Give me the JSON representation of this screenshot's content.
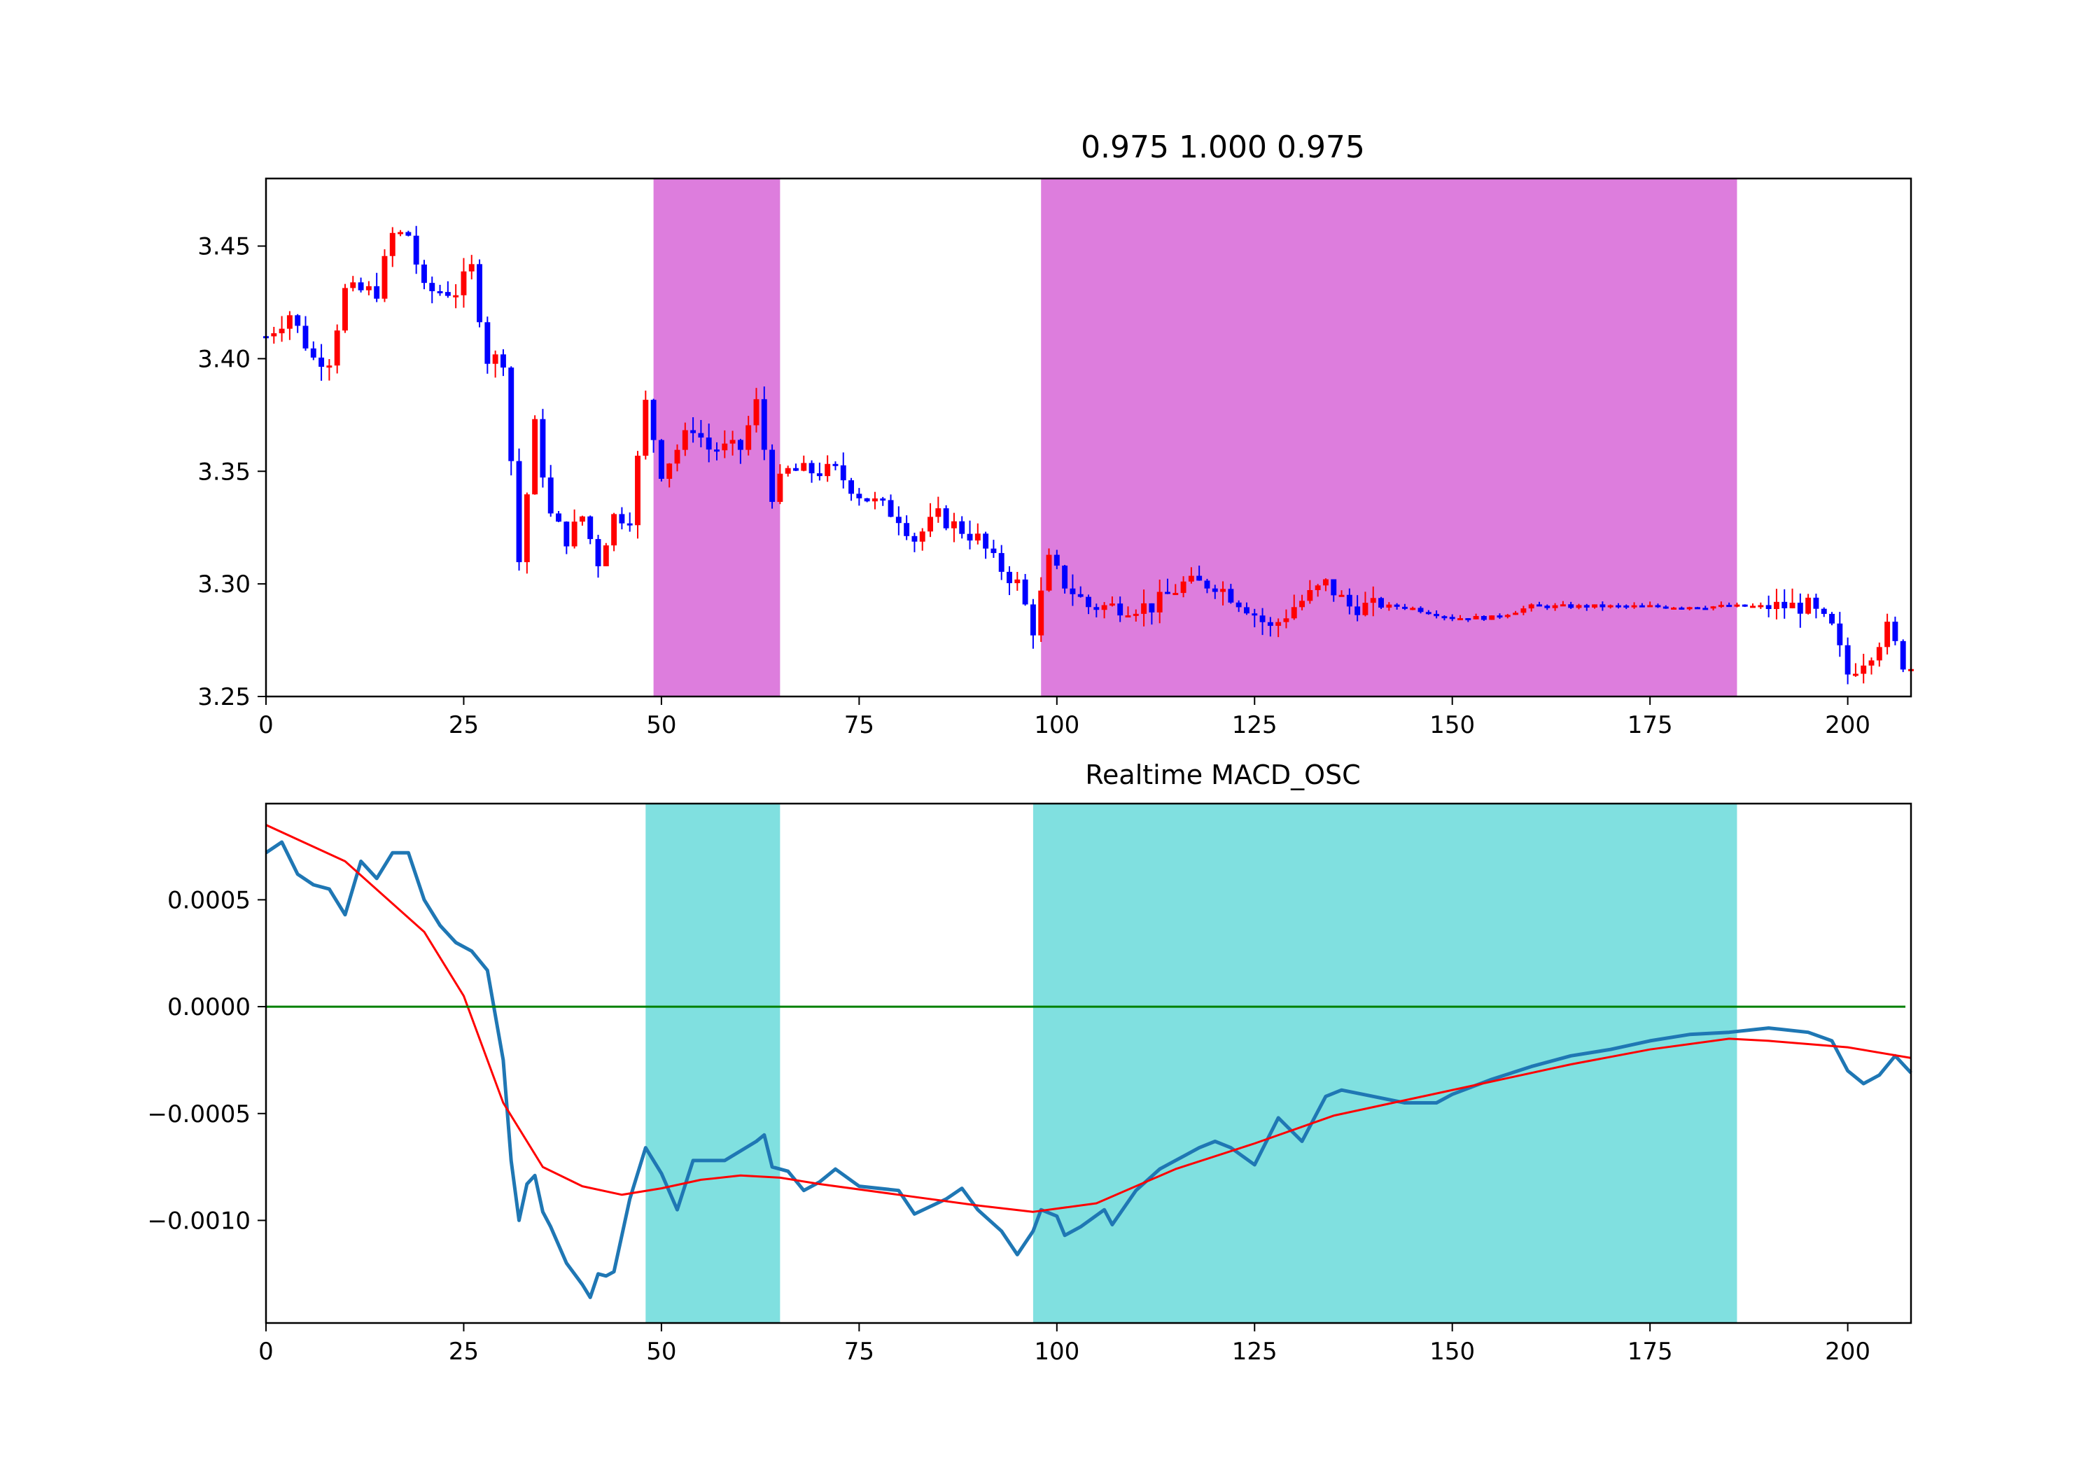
{
  "chart_data": [
    {
      "type": "candlestick",
      "title": "0.975 1.000 0.975",
      "xlabel": "",
      "ylabel": "",
      "xlim": [
        0,
        208
      ],
      "ylim": [
        3.25,
        3.48
      ],
      "x_ticks": [
        0,
        25,
        50,
        75,
        100,
        125,
        150,
        175,
        200
      ],
      "y_ticks": [
        3.25,
        3.3,
        3.35,
        3.4,
        3.45
      ],
      "y_tick_labels": [
        "3.25",
        "3.30",
        "3.35",
        "3.40",
        "3.45"
      ],
      "grid": false,
      "up_color": "#ff0000",
      "down_color": "#0000ff",
      "highlight_color": "#dd7ddd",
      "highlight_ranges": [
        [
          49,
          65
        ],
        [
          98,
          186
        ]
      ],
      "close_anchors": [
        [
          0,
          3.41
        ],
        [
          3,
          3.42
        ],
        [
          6,
          3.4
        ],
        [
          8,
          3.4
        ],
        [
          10,
          3.43
        ],
        [
          12,
          3.43
        ],
        [
          14,
          3.43
        ],
        [
          16,
          3.455
        ],
        [
          18,
          3.455
        ],
        [
          20,
          3.43
        ],
        [
          22,
          3.43
        ],
        [
          24,
          3.43
        ],
        [
          26,
          3.44
        ],
        [
          28,
          3.4
        ],
        [
          30,
          3.4
        ],
        [
          32,
          3.31
        ],
        [
          34,
          3.37
        ],
        [
          36,
          3.33
        ],
        [
          38,
          3.32
        ],
        [
          40,
          3.33
        ],
        [
          42,
          3.31
        ],
        [
          44,
          3.33
        ],
        [
          46,
          3.33
        ],
        [
          48,
          3.38
        ],
        [
          50,
          3.35
        ],
        [
          52,
          3.36
        ],
        [
          54,
          3.37
        ],
        [
          56,
          3.36
        ],
        [
          58,
          3.36
        ],
        [
          60,
          3.36
        ],
        [
          62,
          3.38
        ],
        [
          64,
          3.34
        ],
        [
          66,
          3.35
        ],
        [
          70,
          3.35
        ],
        [
          72,
          3.35
        ],
        [
          75,
          3.34
        ],
        [
          80,
          3.33
        ],
        [
          82,
          3.32
        ],
        [
          85,
          3.33
        ],
        [
          90,
          3.32
        ],
        [
          92,
          3.31
        ],
        [
          95,
          3.3
        ],
        [
          97,
          3.28
        ],
        [
          99,
          3.31
        ],
        [
          101,
          3.3
        ],
        [
          104,
          3.29
        ],
        [
          108,
          3.29
        ],
        [
          112,
          3.29
        ],
        [
          116,
          3.3
        ],
        [
          120,
          3.3
        ],
        [
          124,
          3.29
        ],
        [
          127,
          3.28
        ],
        [
          130,
          3.29
        ],
        [
          134,
          3.3
        ],
        [
          137,
          3.29
        ],
        [
          140,
          3.29
        ],
        [
          144,
          3.29
        ],
        [
          150,
          3.285
        ],
        [
          155,
          3.285
        ],
        [
          160,
          3.29
        ],
        [
          170,
          3.29
        ],
        [
          175,
          3.29
        ],
        [
          185,
          3.29
        ],
        [
          190,
          3.29
        ],
        [
          195,
          3.29
        ],
        [
          198,
          3.28
        ],
        [
          200,
          3.26
        ],
        [
          203,
          3.27
        ],
        [
          205,
          3.28
        ],
        [
          207,
          3.265
        ],
        [
          208,
          3.263
        ]
      ]
    },
    {
      "type": "line",
      "title": "Realtime MACD_OSC",
      "xlabel": "",
      "ylabel": "",
      "xlim": [
        0,
        208
      ],
      "ylim": [
        -0.00148,
        0.00095
      ],
      "x_ticks": [
        0,
        25,
        50,
        75,
        100,
        125,
        150,
        175,
        200
      ],
      "y_ticks": [
        0.0005,
        0.0,
        -0.0005,
        -0.001
      ],
      "y_tick_labels": [
        "0.0005",
        "0.0000",
        "−0.0005",
        "−0.0010"
      ],
      "grid": false,
      "highlight_color": "#80e0e0",
      "highlight_ranges": [
        [
          48,
          65
        ],
        [
          97,
          186
        ]
      ],
      "zero_line_color": "#008000",
      "series": [
        {
          "color": "#1f77b4",
          "points": [
            [
              0,
              0.00072
            ],
            [
              2,
              0.00077
            ],
            [
              4,
              0.00062
            ],
            [
              6,
              0.00057
            ],
            [
              8,
              0.00055
            ],
            [
              10,
              0.00043
            ],
            [
              12,
              0.00068
            ],
            [
              14,
              0.0006
            ],
            [
              16,
              0.00072
            ],
            [
              18,
              0.00072
            ],
            [
              20,
              0.0005
            ],
            [
              22,
              0.00038
            ],
            [
              24,
              0.0003
            ],
            [
              26,
              0.00026
            ],
            [
              28,
              0.00017
            ],
            [
              30,
              -0.00025
            ],
            [
              31,
              -0.00072
            ],
            [
              32,
              -0.001
            ],
            [
              33,
              -0.00083
            ],
            [
              34,
              -0.00079
            ],
            [
              35,
              -0.00096
            ],
            [
              36,
              -0.00103
            ],
            [
              38,
              -0.0012
            ],
            [
              40,
              -0.0013
            ],
            [
              41,
              -0.00136
            ],
            [
              42,
              -0.00125
            ],
            [
              43,
              -0.00126
            ],
            [
              44,
              -0.00124
            ],
            [
              46,
              -0.0009
            ],
            [
              48,
              -0.00066
            ],
            [
              50,
              -0.00078
            ],
            [
              52,
              -0.00095
            ],
            [
              54,
              -0.00072
            ],
            [
              58,
              -0.00072
            ],
            [
              62,
              -0.00063
            ],
            [
              63,
              -0.0006
            ],
            [
              64,
              -0.00075
            ],
            [
              66,
              -0.00077
            ],
            [
              68,
              -0.00086
            ],
            [
              70,
              -0.00082
            ],
            [
              72,
              -0.00076
            ],
            [
              75,
              -0.00084
            ],
            [
              80,
              -0.00086
            ],
            [
              82,
              -0.00097
            ],
            [
              86,
              -0.0009
            ],
            [
              88,
              -0.00085
            ],
            [
              90,
              -0.00095
            ],
            [
              93,
              -0.00105
            ],
            [
              95,
              -0.00116
            ],
            [
              97,
              -0.00105
            ],
            [
              98,
              -0.00095
            ],
            [
              100,
              -0.00098
            ],
            [
              101,
              -0.00107
            ],
            [
              103,
              -0.00103
            ],
            [
              106,
              -0.00095
            ],
            [
              107,
              -0.00102
            ],
            [
              110,
              -0.00086
            ],
            [
              113,
              -0.00076
            ],
            [
              116,
              -0.0007
            ],
            [
              118,
              -0.00066
            ],
            [
              120,
              -0.00063
            ],
            [
              122,
              -0.00066
            ],
            [
              125,
              -0.00074
            ],
            [
              128,
              -0.00052
            ],
            [
              131,
              -0.00063
            ],
            [
              134,
              -0.00042
            ],
            [
              136,
              -0.00039
            ],
            [
              140,
              -0.00042
            ],
            [
              144,
              -0.00045
            ],
            [
              148,
              -0.00045
            ],
            [
              150,
              -0.00041
            ],
            [
              155,
              -0.00034
            ],
            [
              160,
              -0.00028
            ],
            [
              165,
              -0.00023
            ],
            [
              170,
              -0.0002
            ],
            [
              175,
              -0.00016
            ],
            [
              180,
              -0.00013
            ],
            [
              185,
              -0.00012
            ],
            [
              190,
              -0.0001
            ],
            [
              195,
              -0.00012
            ],
            [
              198,
              -0.00016
            ],
            [
              200,
              -0.0003
            ],
            [
              202,
              -0.00036
            ],
            [
              204,
              -0.00032
            ],
            [
              206,
              -0.00023
            ],
            [
              208,
              -0.00031
            ]
          ]
        },
        {
          "color": "#ff0000",
          "points": [
            [
              0,
              0.00085
            ],
            [
              10,
              0.00068
            ],
            [
              20,
              0.00035
            ],
            [
              25,
              5e-05
            ],
            [
              30,
              -0.00045
            ],
            [
              35,
              -0.00075
            ],
            [
              40,
              -0.00084
            ],
            [
              45,
              -0.00088
            ],
            [
              50,
              -0.00085
            ],
            [
              55,
              -0.00081
            ],
            [
              60,
              -0.00079
            ],
            [
              65,
              -0.0008
            ],
            [
              70,
              -0.00083
            ],
            [
              80,
              -0.00088
            ],
            [
              90,
              -0.00093
            ],
            [
              97,
              -0.00096
            ],
            [
              105,
              -0.00092
            ],
            [
              115,
              -0.00076
            ],
            [
              125,
              -0.00064
            ],
            [
              135,
              -0.00051
            ],
            [
              145,
              -0.00043
            ],
            [
              155,
              -0.00035
            ],
            [
              165,
              -0.00027
            ],
            [
              175,
              -0.0002
            ],
            [
              185,
              -0.00015
            ],
            [
              190,
              -0.00016
            ],
            [
              200,
              -0.00019
            ],
            [
              208,
              -0.00024
            ]
          ]
        },
        {
          "color": "#008000",
          "points": [
            [
              0,
              0.0
            ],
            [
              208,
              0.0
            ]
          ]
        }
      ]
    }
  ]
}
